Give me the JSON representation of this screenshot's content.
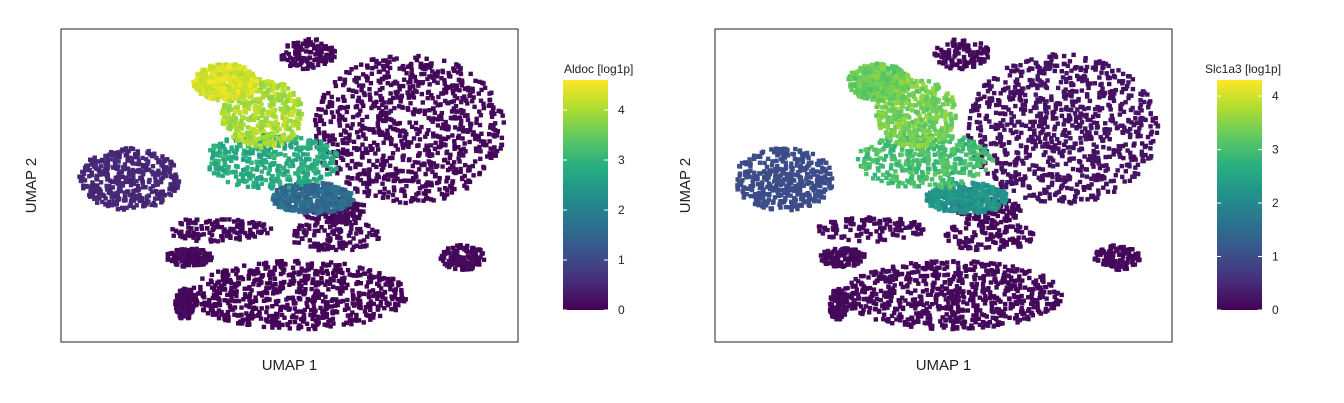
{
  "chart_data": [
    {
      "type": "heatmap",
      "subtype": "umap-hexbin-scatter",
      "xlabel": "UMAP 1",
      "ylabel": "UMAP 2",
      "legend_title": "Aldoc [log1p]",
      "legend_ticks": [
        0,
        1,
        2,
        3,
        4
      ],
      "color_range": [
        0,
        4.6
      ],
      "colorscale": [
        "#440154",
        "#472d7b",
        "#3b528b",
        "#2c728e",
        "#21918c",
        "#28ae80",
        "#5ec962",
        "#addc30",
        "#fde725"
      ],
      "legend_placement": "right",
      "grid": false,
      "regions": [
        {
          "label": "top-left lobe",
          "level": 4.3
        },
        {
          "label": "upper-mid lobe",
          "level": 4.0
        },
        {
          "label": "central band",
          "level": 2.8
        },
        {
          "label": "central tail",
          "level": 1.6
        },
        {
          "label": "left cluster",
          "level": 0.5
        },
        {
          "label": "right cluster",
          "level": 0.1
        },
        {
          "label": "lower clusters",
          "level": 0.05
        }
      ]
    },
    {
      "type": "heatmap",
      "subtype": "umap-hexbin-scatter",
      "xlabel": "UMAP 1",
      "ylabel": "UMAP 2",
      "legend_title": "Slc1a3 [log1p]",
      "legend_ticks": [
        0,
        1,
        2,
        3,
        4
      ],
      "color_range": [
        0,
        4.3
      ],
      "colorscale": [
        "#440154",
        "#472d7b",
        "#3b528b",
        "#2c728e",
        "#21918c",
        "#28ae80",
        "#5ec962",
        "#addc30",
        "#fde725"
      ],
      "legend_placement": "right",
      "grid": false,
      "regions": [
        {
          "label": "top-left lobe",
          "level": 3.3
        },
        {
          "label": "upper-mid lobe",
          "level": 3.4
        },
        {
          "label": "central band",
          "level": 3.0
        },
        {
          "label": "central tail",
          "level": 2.2
        },
        {
          "label": "left cluster",
          "level": 1.0
        },
        {
          "label": "right cluster",
          "level": 0.2
        },
        {
          "label": "lower clusters",
          "level": 0.1
        }
      ]
    }
  ]
}
